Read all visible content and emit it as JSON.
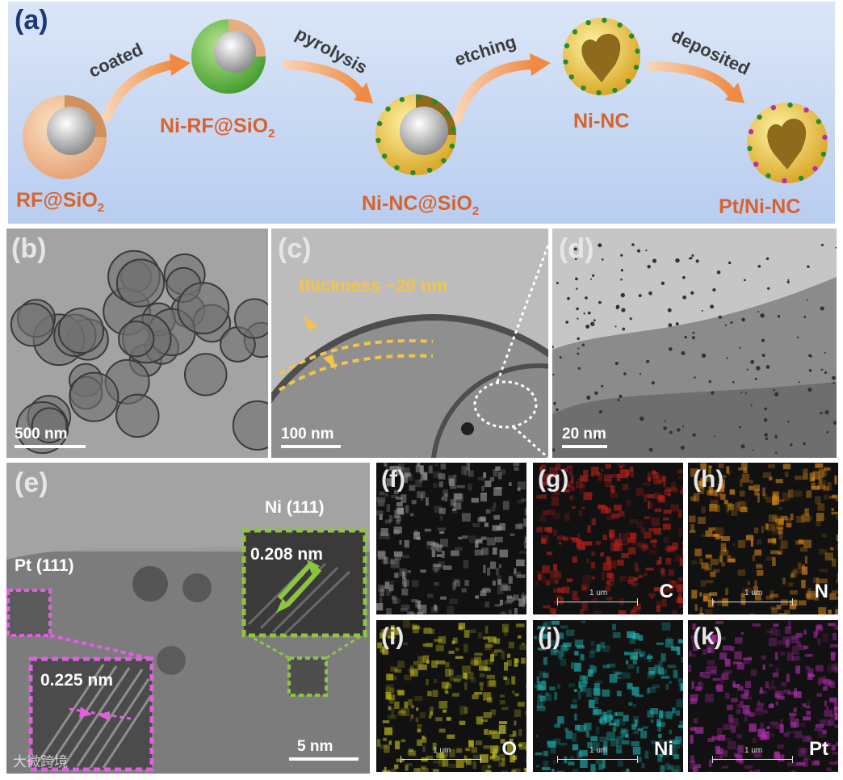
{
  "panel_a": {
    "label": "(a)",
    "stages": [
      "RF@SiO",
      "Ni-RF@SiO",
      "Ni-NC@SiO",
      "Ni-NC",
      "Pt/Ni-NC"
    ],
    "sub2": "2",
    "steps": [
      "coated",
      "pyrolysis",
      "etching",
      "deposited"
    ]
  },
  "panel_b": {
    "label": "(b)",
    "scale": "500 nm"
  },
  "panel_c": {
    "label": "(c)",
    "scale": "100 nm",
    "annotation": "thickness ~20 nm"
  },
  "panel_d": {
    "label": "(d)",
    "scale": "20 nm"
  },
  "panel_e": {
    "label": "(e)",
    "scale": "5 nm",
    "ni_label": "Ni (111)",
    "ni_spacing": "0.208 nm",
    "pt_label": "Pt (111)",
    "pt_spacing": "0.225 nm"
  },
  "edx": [
    {
      "label": "(f)",
      "element": ""
    },
    {
      "label": "(g)",
      "element": "C",
      "scale": "1 um"
    },
    {
      "label": "(h)",
      "element": "N",
      "scale": "1 um"
    },
    {
      "label": "(i)",
      "element": "O",
      "scale": "1 um"
    },
    {
      "label": "(j)",
      "element": "Ni",
      "scale": "1 um"
    },
    {
      "label": "(k)",
      "element": "Pt",
      "scale": "1 um"
    }
  ],
  "colors": {
    "stage_text": "#d9632c",
    "carbon": "#c0201a",
    "nitrogen": "#d5861a",
    "oxygen": "#c7c21e",
    "nickel": "#1fb7b4",
    "platinum": "#b52fb0",
    "ni_frame": "#8cc63f",
    "pt_frame": "#e060e0"
  },
  "watermark": "大微跨境"
}
